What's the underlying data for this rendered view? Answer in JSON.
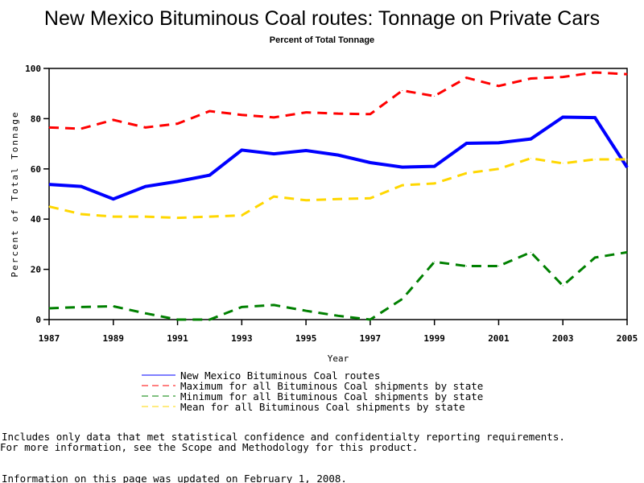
{
  "chart_data": {
    "type": "line",
    "title": "New Mexico Bituminous Coal routes: Tonnage on Private Cars",
    "subtitle": "Percent of Total Tonnage",
    "xlabel": "Year",
    "ylabel": "Percent of Total Tonnage",
    "xlim": [
      1987,
      2005
    ],
    "ylim": [
      0,
      100
    ],
    "x_ticks": [
      "1987",
      "1989",
      "1991",
      "1993",
      "1995",
      "1997",
      "1999",
      "2001",
      "2003",
      "2005"
    ],
    "y_ticks": [
      "0",
      "20",
      "40",
      "60",
      "80",
      "100"
    ],
    "grid": false,
    "legend_position": "bottom",
    "x": [
      1987,
      1988,
      1989,
      1990,
      1991,
      1992,
      1993,
      1994,
      1995,
      1996,
      1997,
      1998,
      1999,
      2000,
      2001,
      2002,
      2003,
      2004,
      2005
    ],
    "series": [
      {
        "name": "New Mexico Bituminous Coal routes",
        "color": "#0000ff",
        "dash": "solid",
        "values": [
          53.8,
          53,
          48,
          53,
          55,
          57.5,
          67.5,
          66,
          67.3,
          65.5,
          62.5,
          60.7,
          61,
          70.2,
          70.4,
          71.9,
          80.6,
          80.4,
          60.6
        ]
      },
      {
        "name": "Maximum for all Bituminous Coal shipments by state",
        "color": "#ff0000",
        "dash": "dashed",
        "values": [
          76.5,
          76,
          79.5,
          76.5,
          78,
          83,
          81.5,
          80.5,
          82.5,
          82,
          81.8,
          91.2,
          89,
          96.3,
          93,
          96,
          96.6,
          98.4,
          97.7
        ]
      },
      {
        "name": "Minimum for all Bituminous Coal shipments by state",
        "color": "#008000",
        "dash": "dashed",
        "values": [
          4.5,
          5,
          5.3,
          2.5,
          0,
          0,
          5,
          5.8,
          3.5,
          1.5,
          0,
          8.2,
          23,
          21.3,
          21.3,
          26.8,
          13.5,
          24.7,
          26.8
        ]
      },
      {
        "name": "Mean for all Bituminous Coal shipments by state",
        "color": "#ffd700",
        "dash": "dashed",
        "values": [
          45,
          42,
          41,
          41,
          40.5,
          41,
          41.5,
          49,
          47.5,
          48,
          48.3,
          53.5,
          54.2,
          58.3,
          60,
          64.2,
          62.2,
          63.8,
          63.8
        ]
      }
    ]
  },
  "notes": {
    "line1": "Includes only data that met statistical confidence and confidentialty reporting requirements.",
    "line2": "For more information, see the Scope and Methodology for this product.",
    "updated": "Information on this page was updated on February 1, 2008."
  }
}
